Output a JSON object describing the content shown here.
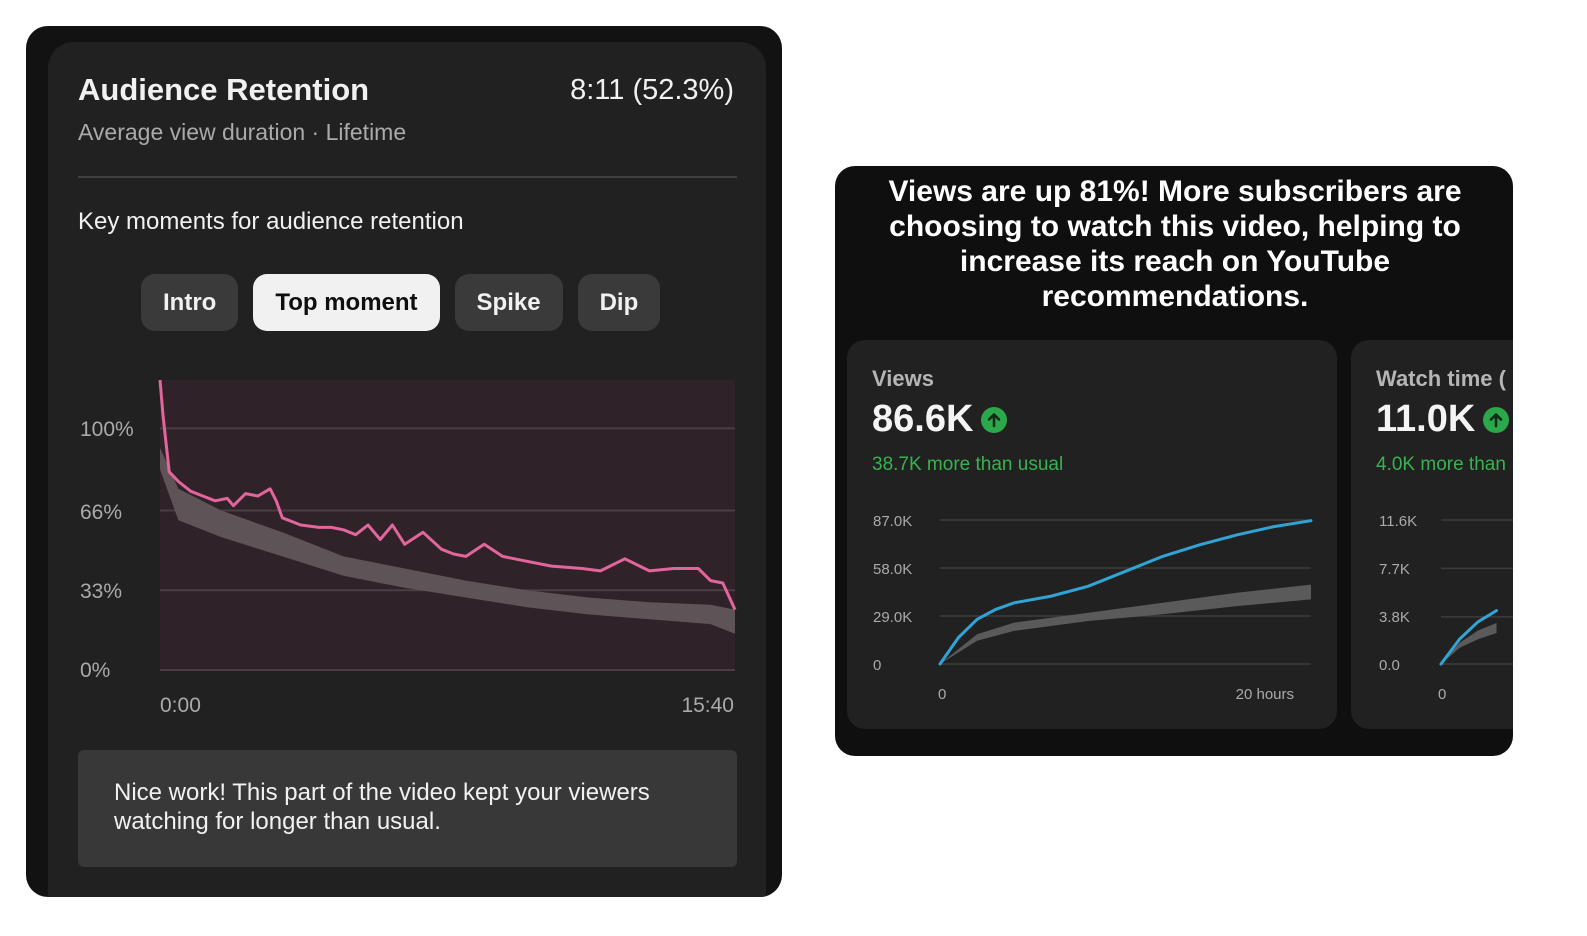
{
  "retention": {
    "title": "Audience Retention",
    "value": "8:11 (52.3%)",
    "subtitle": "Average view duration · Lifetime",
    "key_moments_label": "Key moments for audience retention",
    "chips": [
      {
        "label": "Intro",
        "active": false
      },
      {
        "label": "Top moment",
        "active": true
      },
      {
        "label": "Spike",
        "active": false
      },
      {
        "label": "Dip",
        "active": false
      }
    ],
    "note": "Nice work! This part of the video kept your viewers watching for longer than usual."
  },
  "insight": {
    "headline": "Views are up 81%! More subscribers are choosing to watch this video, helping to increase its reach on YouTube recommendations."
  },
  "metrics": [
    {
      "label": "Views",
      "value": "86.6K",
      "delta": "38.7K more than usual",
      "icon": "arrow-up-circle-icon"
    },
    {
      "label": "Watch time (",
      "value": "11.0K",
      "delta": "4.0K more than",
      "icon": "arrow-up-circle-icon"
    }
  ],
  "colors": {
    "retention_line": "#e2659c",
    "typical_band": "#5e5458",
    "chart_bg": "#2f2228",
    "views_line": "#31a4d6",
    "positive": "#2ba84a"
  },
  "chart_data": [
    {
      "type": "line",
      "title": "",
      "y_ticks": [
        "0%",
        "33%",
        "66%",
        "100%"
      ],
      "x_ticks": [
        "0:00",
        "15:40"
      ],
      "xlim": [
        0,
        940
      ],
      "ylim": [
        0,
        1.2
      ],
      "series": [
        {
          "x": [
            0,
            5,
            15,
            30,
            50,
            70,
            90,
            110,
            120,
            140,
            160,
            180,
            190,
            200,
            230,
            260,
            280,
            300,
            320,
            340,
            360,
            380,
            400,
            430,
            460,
            480,
            500,
            530,
            560,
            600,
            640,
            690,
            720,
            760,
            800,
            840,
            880,
            900,
            920,
            940
          ],
          "values": [
            1.2,
            1.05,
            0.82,
            0.78,
            0.74,
            0.72,
            0.7,
            0.71,
            0.68,
            0.73,
            0.72,
            0.75,
            0.7,
            0.63,
            0.6,
            0.59,
            0.59,
            0.58,
            0.56,
            0.6,
            0.54,
            0.6,
            0.52,
            0.57,
            0.5,
            0.48,
            0.47,
            0.52,
            0.47,
            0.45,
            0.43,
            0.42,
            0.41,
            0.46,
            0.41,
            0.42,
            0.42,
            0.37,
            0.36,
            0.25
          ]
        }
      ],
      "bands": [
        {
          "x": [
            0,
            30,
            100,
            200,
            300,
            400,
            500,
            600,
            700,
            800,
            900,
            940
          ],
          "upper": [
            0.92,
            0.75,
            0.66,
            0.57,
            0.47,
            0.42,
            0.37,
            0.33,
            0.3,
            0.28,
            0.27,
            0.25
          ],
          "lower": [
            0.83,
            0.62,
            0.55,
            0.47,
            0.39,
            0.34,
            0.3,
            0.26,
            0.23,
            0.21,
            0.19,
            0.15
          ]
        }
      ]
    },
    {
      "type": "line",
      "title": "",
      "y_ticks": [
        "0",
        "29.0K",
        "58.0K",
        "87.0K"
      ],
      "x_ticks": [
        "0",
        "20 hours"
      ],
      "xlim": [
        0,
        20
      ],
      "ylim": [
        0,
        87000
      ],
      "series": [
        {
          "name": "",
          "x": [
            0,
            1,
            2,
            3,
            4,
            6,
            8,
            10,
            12,
            14,
            16,
            18,
            20
          ],
          "values": [
            0,
            16000,
            27000,
            33000,
            37000,
            41000,
            47000,
            56000,
            65000,
            72000,
            78000,
            83000,
            86600
          ]
        }
      ],
      "bands": [
        {
          "x": [
            0,
            2,
            4,
            8,
            12,
            16,
            20
          ],
          "upper": [
            0,
            18000,
            25000,
            31000,
            37000,
            43000,
            48000
          ],
          "lower": [
            0,
            14000,
            20000,
            26000,
            30000,
            35000,
            39000
          ]
        }
      ]
    },
    {
      "type": "line",
      "title": "",
      "y_ticks": [
        "0.0",
        "3.8K",
        "7.7K",
        "11.6K"
      ],
      "x_ticks": [
        "0"
      ],
      "xlim": [
        0,
        20
      ],
      "ylim": [
        0,
        11600
      ],
      "series": [
        {
          "name": "",
          "x": [
            0,
            1,
            2,
            3
          ],
          "values": [
            0,
            2000,
            3400,
            4300
          ]
        }
      ],
      "bands": [
        {
          "x": [
            0,
            1,
            2,
            3
          ],
          "upper": [
            0,
            1700,
            2700,
            3300
          ],
          "lower": [
            0,
            1300,
            2000,
            2500
          ]
        }
      ]
    }
  ]
}
